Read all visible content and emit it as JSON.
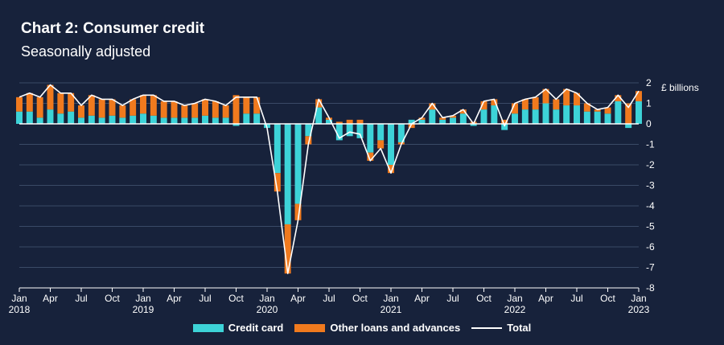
{
  "chart_data": {
    "type": "bar",
    "title": "Chart 2: Consumer credit",
    "subtitle": "Seasonally adjusted",
    "unit_label": "£ billions",
    "ylim": [
      -8,
      2
    ],
    "yticks": [
      2,
      1,
      0,
      -1,
      -2,
      -3,
      -4,
      -5,
      -6,
      -7,
      -8
    ],
    "grid": true,
    "legend_position": "bottom",
    "x_labels": [
      {
        "index": 0,
        "month": "Jan",
        "year": "2018"
      },
      {
        "index": 3,
        "month": "Apr",
        "year": ""
      },
      {
        "index": 6,
        "month": "Jul",
        "year": ""
      },
      {
        "index": 9,
        "month": "Oct",
        "year": ""
      },
      {
        "index": 12,
        "month": "Jan",
        "year": "2019"
      },
      {
        "index": 15,
        "month": "Apr",
        "year": ""
      },
      {
        "index": 18,
        "month": "Jul",
        "year": ""
      },
      {
        "index": 21,
        "month": "Oct",
        "year": ""
      },
      {
        "index": 24,
        "month": "Jan",
        "year": "2020"
      },
      {
        "index": 27,
        "month": "Apr",
        "year": ""
      },
      {
        "index": 30,
        "month": "Jul",
        "year": ""
      },
      {
        "index": 33,
        "month": "Oct",
        "year": ""
      },
      {
        "index": 36,
        "month": "Jan",
        "year": "2021"
      },
      {
        "index": 39,
        "month": "Apr",
        "year": ""
      },
      {
        "index": 42,
        "month": "Jul",
        "year": ""
      },
      {
        "index": 45,
        "month": "Oct",
        "year": ""
      },
      {
        "index": 48,
        "month": "Jan",
        "year": "2022"
      },
      {
        "index": 51,
        "month": "Apr",
        "year": ""
      },
      {
        "index": 54,
        "month": "Jul",
        "year": ""
      },
      {
        "index": 57,
        "month": "Oct",
        "year": ""
      },
      {
        "index": 60,
        "month": "Jan",
        "year": "2023"
      }
    ],
    "series": [
      {
        "name": "Credit card",
        "color": "#3dd3d8",
        "values": [
          0.6,
          0.6,
          0.3,
          0.7,
          0.5,
          0.6,
          0.3,
          0.4,
          0.3,
          0.4,
          0.3,
          0.4,
          0.5,
          0.4,
          0.3,
          0.3,
          0.3,
          0.3,
          0.4,
          0.3,
          0.3,
          -0.1,
          0.5,
          0.5,
          -0.2,
          -2.4,
          -4.9,
          -3.9,
          -0.6,
          0.8,
          0.2,
          -0.8,
          -0.6,
          -0.7,
          -1.4,
          -0.8,
          -2.0,
          -0.9,
          0.2,
          0.2,
          0.7,
          0.2,
          0.3,
          0.5,
          -0.1,
          0.7,
          0.9,
          -0.3,
          0.5,
          0.7,
          0.7,
          1.0,
          0.7,
          0.9,
          0.9,
          0.6,
          0.6,
          0.5,
          1.1,
          -0.2,
          1.1
        ]
      },
      {
        "name": "Other loans and advances",
        "color": "#f07a1e",
        "values": [
          0.7,
          0.9,
          1.0,
          1.2,
          1.0,
          0.9,
          0.6,
          1.0,
          0.9,
          0.8,
          0.6,
          0.8,
          0.9,
          1.0,
          0.8,
          0.8,
          0.6,
          0.7,
          0.8,
          0.8,
          0.6,
          1.4,
          0.8,
          0.8,
          0.0,
          -0.9,
          -2.4,
          -0.8,
          -0.4,
          0.4,
          0.1,
          0.1,
          0.2,
          0.2,
          -0.4,
          -0.4,
          -0.4,
          -0.1,
          -0.2,
          0.1,
          0.3,
          0.1,
          0.1,
          0.2,
          0.1,
          0.4,
          0.3,
          0.2,
          0.5,
          0.5,
          0.6,
          0.7,
          0.5,
          0.8,
          0.6,
          0.4,
          0.1,
          0.3,
          0.3,
          1.0,
          0.5
        ]
      },
      {
        "name": "Total",
        "color": "#ffffff",
        "values": [
          1.3,
          1.5,
          1.3,
          1.9,
          1.5,
          1.5,
          0.9,
          1.4,
          1.2,
          1.2,
          0.9,
          1.2,
          1.4,
          1.4,
          1.1,
          1.1,
          0.9,
          1.0,
          1.2,
          1.1,
          0.9,
          1.3,
          1.3,
          1.3,
          -0.2,
          -3.3,
          -7.3,
          -4.7,
          -1.0,
          1.2,
          0.3,
          -0.7,
          -0.4,
          -0.5,
          -1.8,
          -1.2,
          -2.4,
          -1.0,
          0.0,
          0.3,
          1.0,
          0.3,
          0.4,
          0.7,
          0.0,
          1.1,
          1.2,
          -0.1,
          1.0,
          1.2,
          1.3,
          1.7,
          1.2,
          1.7,
          1.5,
          1.0,
          0.7,
          0.8,
          1.4,
          0.8,
          1.6
        ]
      }
    ]
  },
  "legend": {
    "credit_card": "Credit card",
    "other_loans": "Other loans and advances",
    "total": "Total"
  }
}
